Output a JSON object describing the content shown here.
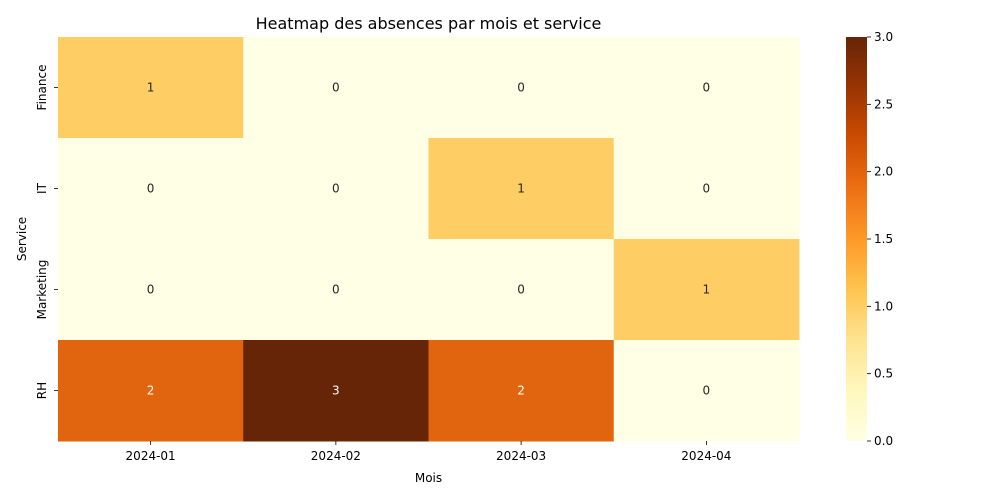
{
  "chart_data": {
    "type": "heatmap",
    "title": "Heatmap des absences par mois et service",
    "xlabel": "Mois",
    "ylabel": "Service",
    "x_categories": [
      "2024-01",
      "2024-02",
      "2024-03",
      "2024-04"
    ],
    "y_categories": [
      "Finance",
      "IT",
      "Marketing",
      "RH"
    ],
    "values": [
      [
        1,
        0,
        0,
        0
      ],
      [
        0,
        0,
        1,
        0
      ],
      [
        0,
        0,
        0,
        1
      ],
      [
        2,
        3,
        2,
        0
      ]
    ],
    "colorscale": "YlOrBr",
    "vmin": 0,
    "vmax": 3,
    "colorbar_ticks": [
      "0.0",
      "0.5",
      "1.0",
      "1.5",
      "2.0",
      "2.5",
      "3.0"
    ],
    "annotated": true,
    "grid": false
  }
}
